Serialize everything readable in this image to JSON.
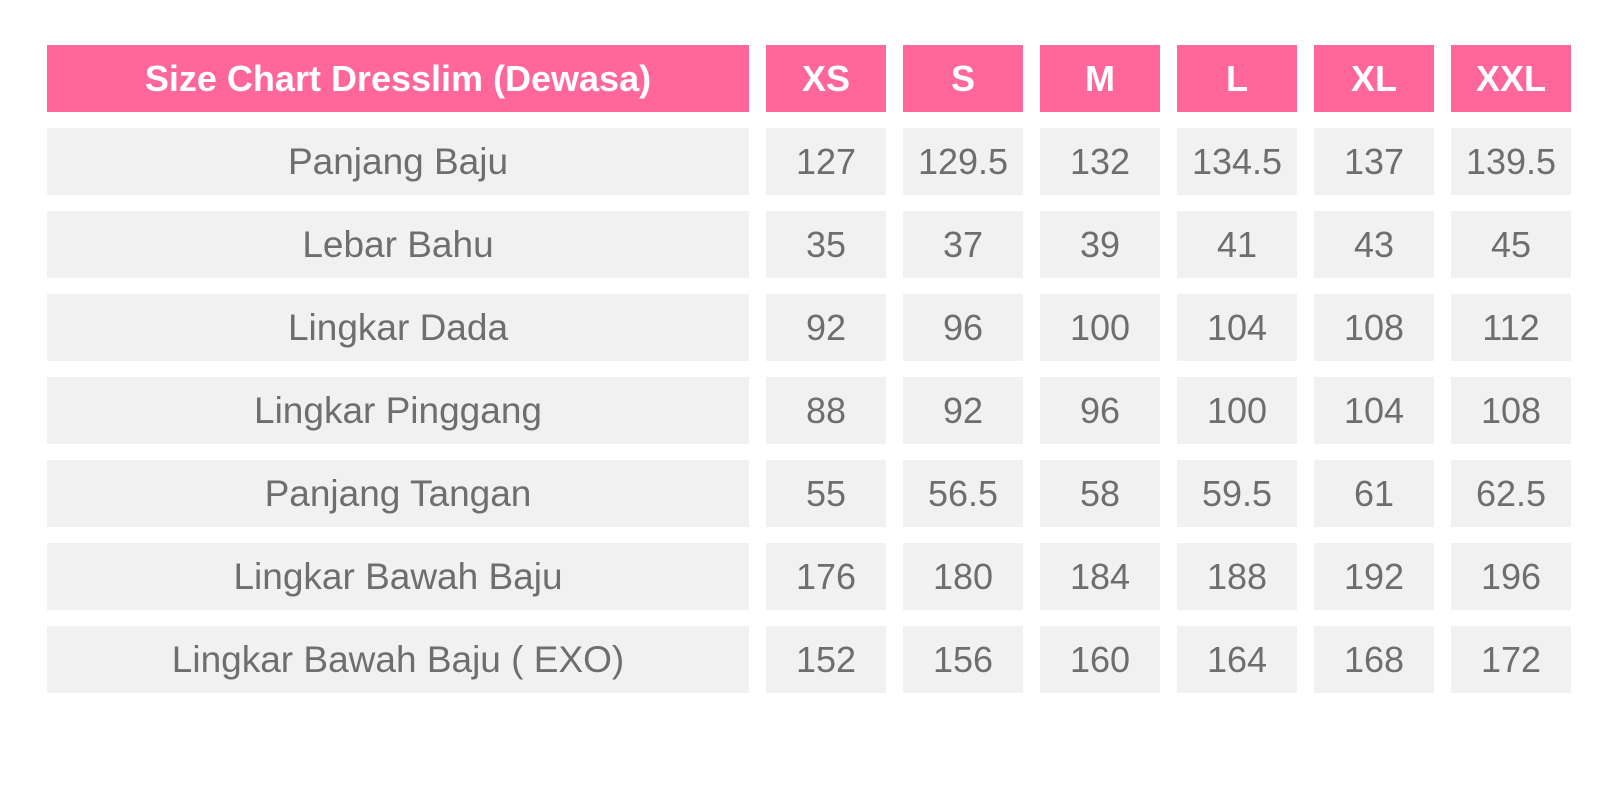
{
  "table": {
    "title": "Size Chart Dresslim (Dewasa)",
    "sizes": [
      "XS",
      "S",
      "M",
      "L",
      "XL",
      "XXL"
    ],
    "rows": [
      {
        "label": "Panjang Baju",
        "values": [
          "127",
          "129.5",
          "132",
          "134.5",
          "137",
          "139.5"
        ]
      },
      {
        "label": "Lebar Bahu",
        "values": [
          "35",
          "37",
          "39",
          "41",
          "43",
          "45"
        ]
      },
      {
        "label": "Lingkar Dada",
        "values": [
          "92",
          "96",
          "100",
          "104",
          "108",
          "112"
        ]
      },
      {
        "label": "Lingkar Pinggang",
        "values": [
          "88",
          "92",
          "96",
          "100",
          "104",
          "108"
        ]
      },
      {
        "label": "Panjang Tangan",
        "values": [
          "55",
          "56.5",
          "58",
          "59.5",
          "61",
          "62.5"
        ]
      },
      {
        "label": "Lingkar Bawah Baju",
        "values": [
          "176",
          "180",
          "184",
          "188",
          "192",
          "196"
        ]
      },
      {
        "label": "Lingkar Bawah Baju ( EXO)",
        "values": [
          "152",
          "156",
          "160",
          "164",
          "168",
          "172"
        ]
      }
    ]
  },
  "colors": {
    "header_background": "#ff6699",
    "header_text": "#ffffff",
    "cell_background": "#f1f1f1",
    "cell_text": "#6e6e6e"
  }
}
